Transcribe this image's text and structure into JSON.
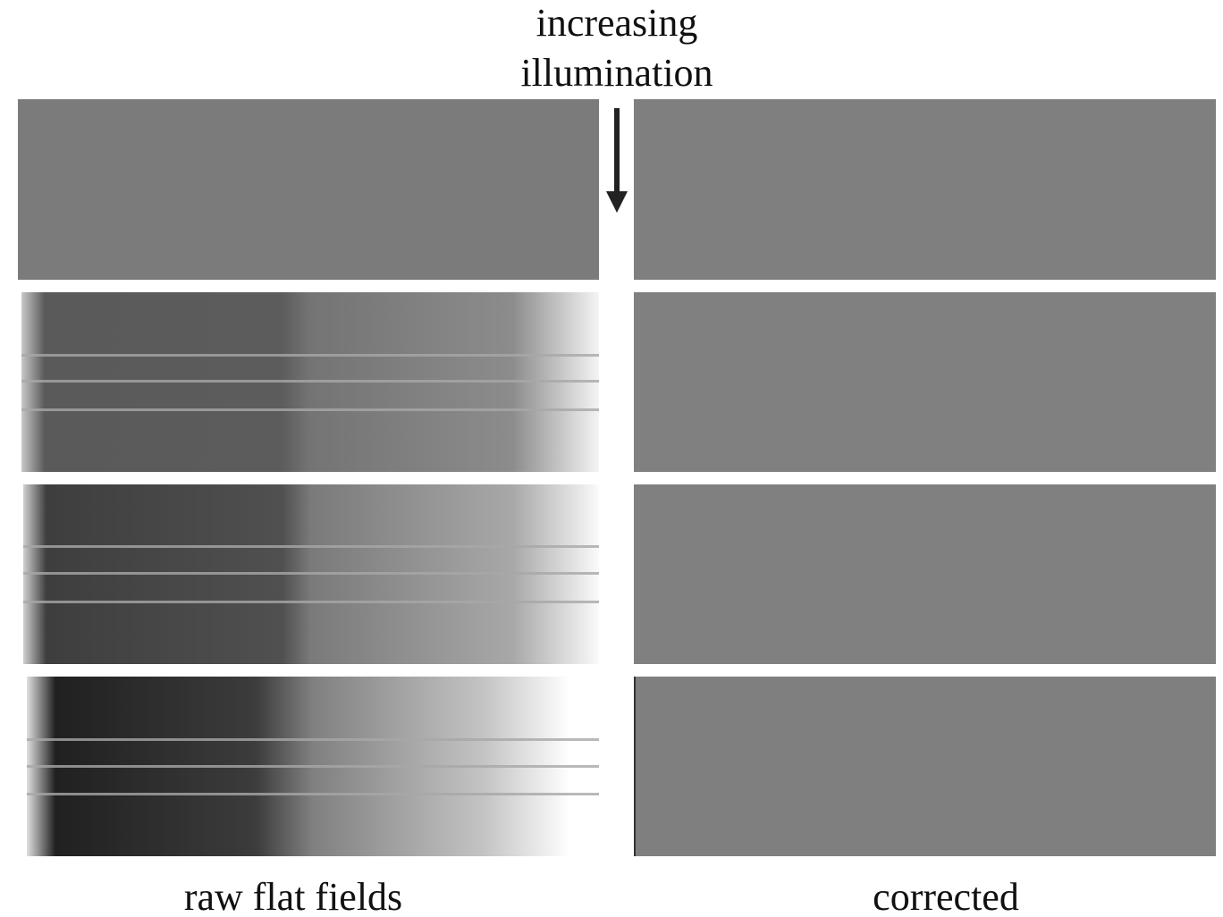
{
  "header": {
    "lines": [
      "increasing",
      "illumination"
    ]
  },
  "labels": {
    "left": "raw flat fields",
    "right": "corrected"
  }
}
